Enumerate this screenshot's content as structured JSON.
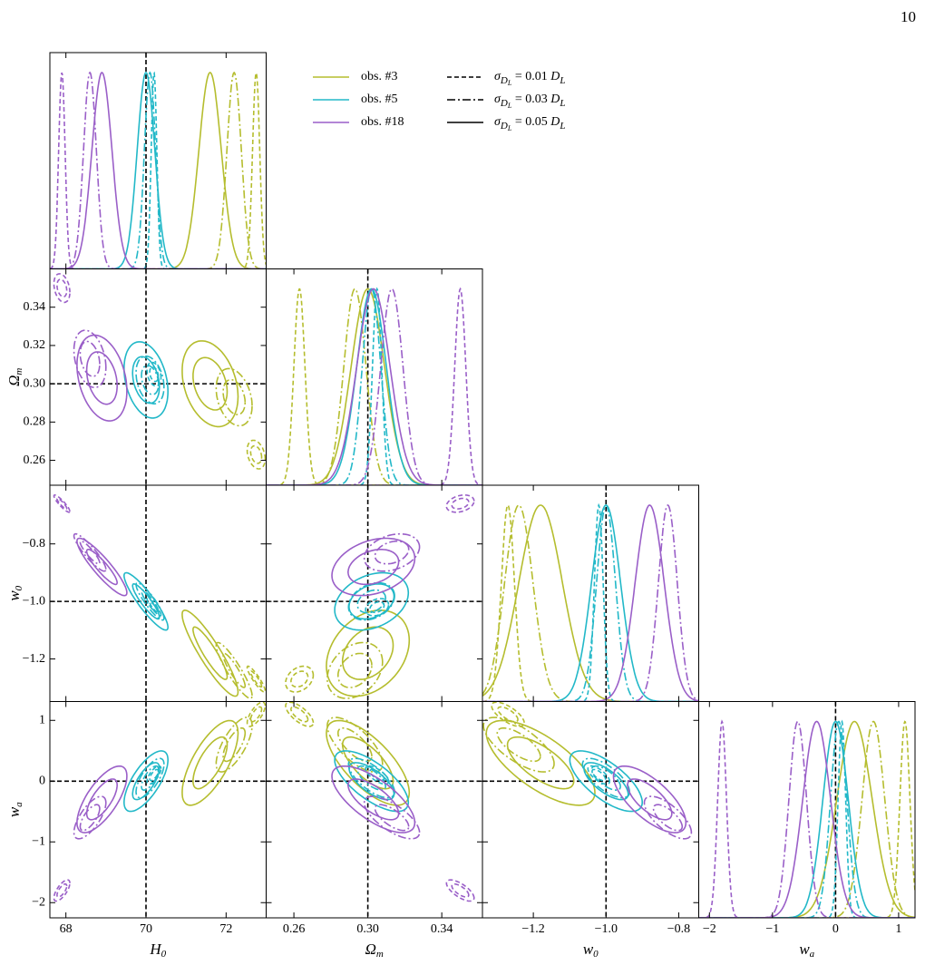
{
  "page_number": "10",
  "chart_data": {
    "type": "corner",
    "params": [
      {
        "label": [
          "H",
          "0"
        ],
        "xlim": [
          67.6,
          73.0
        ],
        "xticks": [
          68,
          70,
          72
        ]
      },
      {
        "label": [
          "Ω",
          "m"
        ],
        "xlim": [
          0.245,
          0.362
        ],
        "xticks": [
          0.26,
          {
            "value": 0.3,
            "label": "0.30"
          },
          0.34
        ],
        "ylim": [
          0.247,
          0.36
        ],
        "yticks": [
          0.26,
          0.28,
          {
            "value": 0.3,
            "label": "0.30"
          },
          0.32,
          0.34
        ]
      },
      {
        "label": [
          "w",
          "0"
        ],
        "xlim": [
          -1.34,
          -0.745
        ],
        "xticks": [
          {
            "value": -1.2,
            "label": "−1.2"
          },
          {
            "value": -1.0,
            "label": "−1.0"
          },
          {
            "value": -0.8,
            "label": "−0.8"
          }
        ],
        "ylim": [
          -1.348,
          -0.596
        ],
        "yticks": [
          {
            "value": -1.2,
            "label": "−1.2"
          },
          {
            "value": -1.0,
            "label": "−1.0"
          },
          {
            "value": -0.8,
            "label": "−0.8"
          }
        ]
      },
      {
        "label": [
          "w",
          "a"
        ],
        "xlim": [
          -2.17,
          1.26
        ],
        "xticks": [
          {
            "value": -2,
            "label": "−2"
          },
          {
            "value": -1,
            "label": "−1"
          },
          0,
          1
        ],
        "ylim": [
          -2.25,
          1.31
        ],
        "yticks": [
          {
            "value": -2,
            "label": "−2"
          },
          {
            "value": -1,
            "label": "−1"
          },
          0,
          1
        ]
      }
    ],
    "truth": [
      70,
      0.3,
      -1,
      0
    ],
    "correlations": [
      [
        -0.3
      ],
      [
        -0.9,
        0.3
      ],
      [
        0.7,
        -0.7,
        -0.7
      ]
    ],
    "noise_levels": [
      {
        "label": [
          "σ",
          "D",
          "L",
          " = 0.01 ",
          "D",
          "L"
        ],
        "style": "dashed"
      },
      {
        "label": [
          "σ",
          "D",
          "L",
          " = 0.03 ",
          "D",
          "L"
        ],
        "style": "dashdot"
      },
      {
        "label": [
          "σ",
          "D",
          "L",
          " = 0.05 ",
          "D",
          "L"
        ],
        "style": "solid"
      }
    ],
    "observations": [
      {
        "name": "obs. #3",
        "color": "#b5bd2e",
        "fits": [
          {
            "means": [
              72.75,
              0.263,
              -1.27,
              1.1
            ],
            "sigmas": [
              0.09,
              0.003,
              0.018,
              0.08
            ]
          },
          {
            "means": [
              72.2,
              0.293,
              -1.24,
              0.6
            ],
            "sigmas": [
              0.18,
              0.006,
              0.039,
              0.18
            ]
          },
          {
            "means": [
              71.6,
              0.3,
              -1.18,
              0.3
            ],
            "sigmas": [
              0.28,
              0.009,
              0.06,
              0.28
            ]
          }
        ]
      },
      {
        "name": "obs. #5",
        "color": "#22b8c8",
        "fits": [
          {
            "means": [
              70.2,
              0.305,
              -1.02,
              0.1
            ],
            "sigmas": [
              0.07,
              0.0025,
              0.012,
              0.06
            ]
          },
          {
            "means": [
              70.1,
              0.302,
              -1.0,
              0.05
            ],
            "sigmas": [
              0.14,
              0.005,
              0.026,
              0.13
            ]
          },
          {
            "means": [
              70.0,
              0.302,
              -1.0,
              0.0
            ],
            "sigmas": [
              0.22,
              0.008,
              0.04,
              0.2
            ]
          }
        ]
      },
      {
        "name": "obs. #18",
        "color": "#9a5fc8",
        "fits": [
          {
            "means": [
              67.9,
              0.35,
              -0.66,
              -1.8
            ],
            "sigmas": [
              0.08,
              0.003,
              0.012,
              0.07
            ]
          },
          {
            "means": [
              68.6,
              0.313,
              -0.83,
              -0.6
            ],
            "sigmas": [
              0.16,
              0.006,
              0.026,
              0.14
            ]
          },
          {
            "means": [
              68.9,
              0.303,
              -0.88,
              -0.3
            ],
            "sigmas": [
              0.25,
              0.009,
              0.04,
              0.22
            ]
          }
        ]
      }
    ]
  }
}
